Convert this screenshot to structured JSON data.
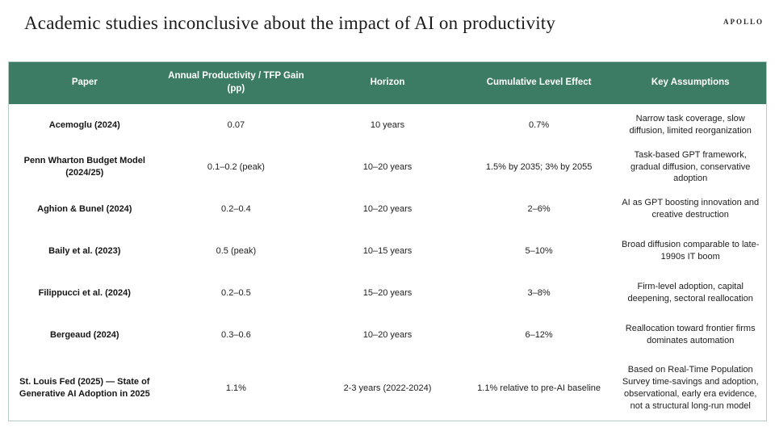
{
  "logo": "APOLLO",
  "title": "Academic studies inconclusive about the impact of AI on productivity",
  "colors": {
    "header_bg": "#3c7b64",
    "table_border": "#b5cec3",
    "header_text": "#ffffff",
    "body_text": "#1d1d1f"
  },
  "table": {
    "headers": [
      "Paper",
      "Annual Productivity / TFP Gain (pp)",
      "Horizon",
      "Cumulative Level Effect",
      "Key Assumptions"
    ],
    "rows": [
      {
        "paper": "Acemoglu (2024)",
        "gain": "0.07",
        "horizon": "10 years",
        "effect": "0.7%",
        "assumptions": "Narrow task coverage, slow diffusion, limited reorganization"
      },
      {
        "paper": "Penn Wharton Budget Model (2024/25)",
        "gain": "0.1–0.2 (peak)",
        "horizon": "10–20 years",
        "effect": "1.5% by 2035; 3% by 2055",
        "assumptions": "Task-based GPT framework, gradual diffusion, conservative adoption"
      },
      {
        "paper": "Aghion & Bunel (2024)",
        "gain": "0.2–0.4",
        "horizon": "10–20 years",
        "effect": "2–6%",
        "assumptions": "AI as GPT boosting innovation and creative destruction"
      },
      {
        "paper": "Baily et al. (2023)",
        "gain": "0.5 (peak)",
        "horizon": "10–15 years",
        "effect": "5–10%",
        "assumptions": "Broad diffusion comparable to late-1990s IT boom"
      },
      {
        "paper": "Filippucci et al. (2024)",
        "gain": "0.2–0.5",
        "horizon": "15–20 years",
        "effect": "3–8%",
        "assumptions": "Firm-level adoption, capital deepening, sectoral reallocation"
      },
      {
        "paper": "Bergeaud (2024)",
        "gain": "0.3–0.6",
        "horizon": "10–20 years",
        "effect": "6–12%",
        "assumptions": "Reallocation toward frontier firms dominates automation"
      },
      {
        "paper": "St. Louis Fed (2025) — State of Generative AI Adoption in 2025",
        "gain": "1.1%",
        "horizon": "2-3 years (2022-2024)",
        "effect": "1.1% relative to pre-AI baseline",
        "assumptions": "Based on Real-Time Population Survey time-savings and adoption, observational, early era evidence, not a structural long-run model"
      }
    ]
  },
  "chart_data": {
    "type": "table",
    "title": "Academic studies inconclusive about the impact of AI on productivity",
    "columns": [
      "Paper",
      "Annual Productivity / TFP Gain (pp)",
      "Horizon",
      "Cumulative Level Effect",
      "Key Assumptions"
    ],
    "rows": [
      [
        "Acemoglu (2024)",
        "0.07",
        "10 years",
        "0.7%",
        "Narrow task coverage, slow diffusion, limited reorganization"
      ],
      [
        "Penn Wharton Budget Model (2024/25)",
        "0.1–0.2 (peak)",
        "10–20 years",
        "1.5% by 2035; 3% by 2055",
        "Task-based GPT framework, gradual diffusion, conservative adoption"
      ],
      [
        "Aghion & Bunel (2024)",
        "0.2–0.4",
        "10–20 years",
        "2–6%",
        "AI as GPT boosting innovation and creative destruction"
      ],
      [
        "Baily et al. (2023)",
        "0.5 (peak)",
        "10–15 years",
        "5–10%",
        "Broad diffusion comparable to late-1990s IT boom"
      ],
      [
        "Filippucci et al. (2024)",
        "0.2–0.5",
        "15–20 years",
        "3–8%",
        "Firm-level adoption, capital deepening, sectoral reallocation"
      ],
      [
        "Bergeaud (2024)",
        "0.3–0.6",
        "10–20 years",
        "6–12%",
        "Reallocation toward frontier firms dominates automation"
      ],
      [
        "St. Louis Fed (2025) — State of Generative AI Adoption in 2025",
        "1.1%",
        "2-3 years (2022-2024)",
        "1.1% relative to pre-AI baseline",
        "Based on Real-Time Population Survey time-savings and adoption, observational, early era evidence, not a structural long-run model"
      ]
    ]
  }
}
